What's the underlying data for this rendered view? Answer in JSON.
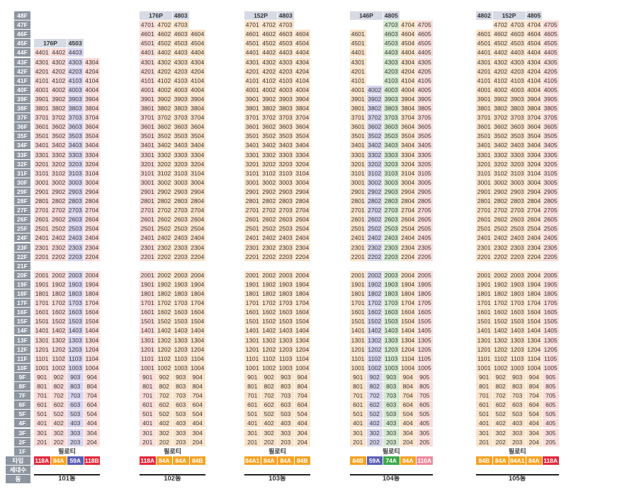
{
  "row_labels": {
    "type": "타입",
    "households": "세대수",
    "building": "동"
  },
  "pilotis_label": "필로티",
  "colors": {
    "peach": "#fbe3c9",
    "pink": "#fbdcd8",
    "lavender": "#d9d7ef",
    "green": "#d5e9cf",
    "hdr": "#d6dae4",
    "floor_label": "#8c95a0",
    "type_red": "#e4283c",
    "type_orange": "#f5a322",
    "type_blue": "#5b5fb4",
    "type_green": "#3da84a",
    "type_pink": "#f08a9c"
  },
  "buildings": [
    {
      "name": "101동",
      "top_floor": 44,
      "header_floor": 45,
      "header": [
        {
          "text": "176P",
          "span": 2
        },
        {
          "text": "4503",
          "span": 1
        }
      ],
      "line_suffixes": [
        "01",
        "02",
        "03",
        "04"
      ],
      "line_tops": [
        44,
        44,
        44,
        43
      ],
      "line_colors": [
        "pink",
        "pink",
        "lavender",
        "pink"
      ],
      "types": [
        "118A",
        "84A",
        "59A",
        "118B"
      ],
      "type_colors": [
        "type_red",
        "type_orange",
        "type_blue",
        "type_red"
      ]
    },
    {
      "name": "102동",
      "top_floor": 47,
      "header_floor": 48,
      "header": [
        {
          "text": "176P",
          "span": 2
        },
        {
          "text": "4803",
          "span": 1
        }
      ],
      "line_suffixes": [
        "01",
        "02",
        "03",
        "04"
      ],
      "line_tops": [
        47,
        47,
        47,
        46
      ],
      "line_colors": [
        "pink",
        "peach",
        "peach",
        "peach"
      ],
      "types": [
        "118A",
        "84A",
        "84A",
        "84B"
      ],
      "type_colors": [
        "type_red",
        "type_orange",
        "type_orange",
        "type_orange"
      ]
    },
    {
      "name": "103동",
      "top_floor": 47,
      "header_floor": 48,
      "header": [
        {
          "text": "152P",
          "span": 2
        },
        {
          "text": "4803",
          "span": 1
        }
      ],
      "line_suffixes": [
        "01",
        "02",
        "03",
        "04"
      ],
      "line_tops": [
        47,
        47,
        47,
        46
      ],
      "line_colors": [
        "peach",
        "peach",
        "peach",
        "peach"
      ],
      "types": [
        "84A1",
        "84A",
        "84A",
        "84B"
      ],
      "type_colors": [
        "type_orange",
        "type_orange",
        "type_orange",
        "type_orange"
      ]
    },
    {
      "name": "104동",
      "top_floor": 47,
      "header_floor": 48,
      "header": [
        {
          "text": "146P",
          "span": 2
        },
        {
          "text": "4805",
          "span": 1
        }
      ],
      "line_suffixes": [
        "01",
        "02",
        "03",
        "04",
        "05"
      ],
      "line_tops": [
        46,
        40,
        47,
        47,
        47
      ],
      "line_colors": [
        "peach",
        "lavender",
        "green",
        "peach",
        "pink"
      ],
      "types": [
        "84B",
        "59A",
        "74A",
        "84A",
        "110A"
      ],
      "type_colors": [
        "type_orange",
        "type_blue",
        "type_green",
        "type_orange",
        "type_pink"
      ]
    },
    {
      "name": "105동",
      "top_floor": 47,
      "header_floor": 48,
      "header": [
        {
          "text": "4802",
          "span": 1
        },
        {
          "text": "152P",
          "span": 2
        },
        {
          "text": "4805",
          "span": 1
        }
      ],
      "line_suffixes": [
        "01",
        "02",
        "03",
        "04",
        "05"
      ],
      "line_tops": [
        46,
        47,
        47,
        47,
        47
      ],
      "line_colors": [
        "peach",
        "peach",
        "peach",
        "peach",
        "pink"
      ],
      "types": [
        "84B",
        "84A",
        "84A1",
        "84A",
        "118A"
      ],
      "type_colors": [
        "type_orange",
        "type_orange",
        "type_orange",
        "type_orange",
        "type_red"
      ]
    }
  ],
  "empty_floors": [
    21
  ],
  "min_floor": 2
}
